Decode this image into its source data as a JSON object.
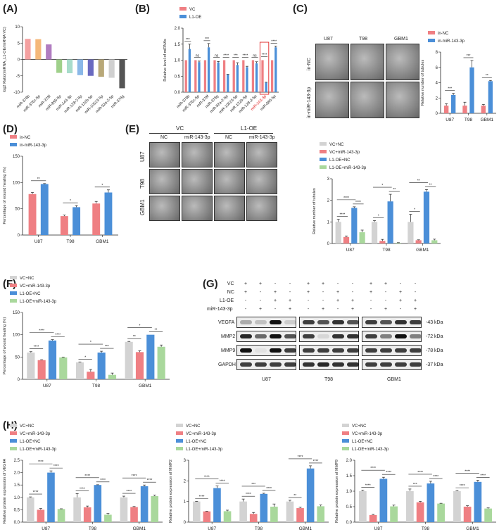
{
  "panels": {
    "A": "(A)",
    "B": "(B)",
    "C": "(C)",
    "D": "(D)",
    "E": "(E)",
    "F": "(F)",
    "G": "(G)",
    "H": "(H)"
  },
  "colors": {
    "grey": "#d3d3d3",
    "red": "#ef7f83",
    "blue": "#4b8fd8",
    "green": "#a9d89c"
  },
  "panel_c_images": {
    "columns": [
      "U87",
      "T98",
      "GBM1"
    ],
    "rows": [
      "in-NC",
      "in-miR-143-3p"
    ]
  },
  "panel_e_images": {
    "groups": [
      "VC",
      "L1-OE"
    ],
    "columns": [
      "NC",
      "miR-143-3p",
      "NC",
      "miR-143-3p"
    ],
    "rows": [
      "U87",
      "T98",
      "GBM1"
    ]
  },
  "panel_g": {
    "conditions": [
      {
        "label": "VC",
        "signs": [
          "+",
          "+",
          "-",
          "-",
          "+",
          "+",
          "-",
          "-",
          "+",
          "+",
          "-",
          "-"
        ]
      },
      {
        "label": "NC",
        "signs": [
          "+",
          "-",
          "+",
          "-",
          "+",
          "-",
          "+",
          "-",
          "+",
          "-",
          "+",
          "-"
        ]
      },
      {
        "label": "L1-OE",
        "signs": [
          "-",
          "-",
          "+",
          "+",
          "-",
          "-",
          "+",
          "+",
          "-",
          "-",
          "+",
          "+"
        ]
      },
      {
        "label": "miR-143-3p",
        "signs": [
          "-",
          "+",
          "-",
          "+",
          "-",
          "+",
          "-",
          "+",
          "-",
          "+",
          "-",
          "+"
        ]
      }
    ],
    "proteins": [
      {
        "name": "VEGFA",
        "kda": "-43 kDa"
      },
      {
        "name": "MMP2",
        "kda": "-72 kDa"
      },
      {
        "name": "MMP9",
        "kda": "-78 kDa"
      },
      {
        "name": "GAPDH",
        "kda": "-37 kDa"
      }
    ],
    "cells": [
      "U87",
      "T98",
      "GBM1"
    ]
  },
  "chart_data": [
    {
      "id": "A",
      "type": "bar",
      "ylabel": "log2 Ratio(miRNA_L1-OE/miRNA VC)",
      "ylim": [
        -10,
        10
      ],
      "yticks": [
        -10,
        -5,
        0,
        5,
        10
      ],
      "rotate_labels": true,
      "categories": [
        "miR-378b",
        "miR-376c-5p",
        "miR-378f",
        "miR-885-5p",
        "miR-143-3p",
        "miR-128-2-5p",
        "miR-122b-5p",
        "miR-10523-5p",
        "miR-92a-2-5p",
        "miR-378g"
      ],
      "values": [
        6.3,
        6.2,
        4.6,
        -4.1,
        -4.2,
        -4.8,
        -5.0,
        -5.3,
        -5.6,
        -8.8
      ],
      "bar_colors": [
        "#f4a0a0",
        "#f5b87a",
        "#b07cc0",
        "#9fd08a",
        "#a8dccb",
        "#8ab8e8",
        "#6a6ac0",
        "#b8a878",
        "#d0d0d0",
        "#555555"
      ]
    },
    {
      "id": "B",
      "type": "bar",
      "ylabel": "Relative level of miRNAs",
      "ylim": [
        0,
        2
      ],
      "yticks": [
        "0.0",
        "0.5",
        "1.0",
        "1.5",
        "2.0"
      ],
      "rotate_labels": true,
      "highlight": "miR-143-3p",
      "categories": [
        "miR-378b",
        "miR-376c-5p",
        "miR-378f",
        "miR-378g",
        "miR-92a-2-5p",
        "miR-10523-5p",
        "miR-122b-5p",
        "miR-128-2-5p",
        "miR-143-3p",
        "miR-885-5p"
      ],
      "series": [
        {
          "name": "VC",
          "color": "#ef7f83",
          "values": [
            1,
            1,
            1,
            1,
            1,
            1,
            1,
            1,
            1,
            1
          ],
          "errors": [
            0,
            0,
            0,
            0,
            0,
            0,
            0,
            0,
            0,
            0
          ]
        },
        {
          "name": "L1-OE",
          "color": "#4b8fd8",
          "values": [
            1.35,
            0.94,
            1.4,
            0.93,
            0.55,
            0.85,
            0.78,
            0.9,
            0.3,
            1.4
          ],
          "errors": [
            0.15,
            0.03,
            0.12,
            0.03,
            0.01,
            0.07,
            0.03,
            0.05,
            0.01,
            0.04
          ]
        }
      ],
      "sig": [
        [
          "***"
        ],
        [
          "ns"
        ],
        [
          "***"
        ],
        [
          "ns"
        ],
        [
          "****"
        ],
        [
          "***"
        ],
        [
          "****"
        ],
        [
          "ns"
        ],
        [
          "****"
        ],
        [
          "****"
        ]
      ]
    },
    {
      "id": "C",
      "type": "bar",
      "ylabel": "Relative number of tubules",
      "ylim": [
        0,
        8
      ],
      "yticks": [
        0,
        2,
        4,
        6,
        8
      ],
      "categories": [
        "U87",
        "T98",
        "GBM1"
      ],
      "series": [
        {
          "name": "in-NC",
          "color": "#ef7f83",
          "values": [
            1,
            1,
            1
          ],
          "errors": [
            0.25,
            0.45,
            0.15
          ]
        },
        {
          "name": "in-miR-143-3p",
          "color": "#4b8fd8",
          "values": [
            2.4,
            6.0,
            4.2
          ],
          "errors": [
            0.2,
            0.9,
            0.1
          ]
        }
      ],
      "sig": [
        [
          "***"
        ],
        [
          "***"
        ],
        [
          "**"
        ]
      ]
    },
    {
      "id": "D",
      "type": "bar",
      "ylabel": "Percentage of wound healing (%)",
      "ylim": [
        0,
        150
      ],
      "yticks": [
        0,
        50,
        100,
        150
      ],
      "categories": [
        "U87",
        "T98",
        "GBM1"
      ],
      "series": [
        {
          "name": "in-NC",
          "color": "#ef7f83",
          "values": [
            78,
            36,
            60
          ],
          "errors": [
            3,
            2,
            4
          ]
        },
        {
          "name": "in-miR-143-3p",
          "color": "#4b8fd8",
          "values": [
            97,
            53,
            81
          ],
          "errors": [
            1,
            3,
            5
          ]
        }
      ],
      "sig": [
        [
          "**"
        ],
        [
          "*"
        ],
        [
          "*"
        ]
      ]
    },
    {
      "id": "E",
      "type": "bar",
      "ylabel": "Relative number of tubules",
      "ylim": [
        0,
        3
      ],
      "yticks": [
        0,
        1,
        2,
        3
      ],
      "categories": [
        "U87",
        "T98",
        "GBM1"
      ],
      "series": [
        {
          "name": "VC+NC",
          "color": "#d3d3d3",
          "values": [
            1.0,
            1.0,
            1.0
          ],
          "errors": [
            0.12,
            0.06,
            0.35
          ]
        },
        {
          "name": "VC+miR-143-3p",
          "color": "#ef7f83",
          "values": [
            0.3,
            0.12,
            0.15
          ],
          "errors": [
            0.05,
            0.07,
            0.02
          ]
        },
        {
          "name": "L1-OE+NC",
          "color": "#4b8fd8",
          "values": [
            1.65,
            1.95,
            2.4
          ],
          "errors": [
            0.05,
            0.33,
            0.1
          ]
        },
        {
          "name": "L1-OE+miR-143-3p",
          "color": "#a9d89c",
          "values": [
            0.52,
            0.03,
            0.15
          ],
          "errors": [
            0.1,
            0.01,
            0.05
          ]
        }
      ],
      "sig": [
        [
          "****",
          "****",
          "****"
        ],
        [
          "*",
          "*",
          "**"
        ],
        [
          "*",
          "**",
          "**"
        ]
      ]
    },
    {
      "id": "F",
      "type": "bar",
      "ylabel": "Percentage of wound healing (%)",
      "ylim": [
        0,
        150
      ],
      "yticks": [
        0,
        50,
        100,
        150
      ],
      "categories": [
        "U87",
        "T98",
        "GBM1"
      ],
      "series": [
        {
          "name": "VC+NC",
          "color": "#d3d3d3",
          "values": [
            60,
            38,
            84
          ],
          "errors": [
            2,
            1,
            1
          ]
        },
        {
          "name": "VC+miR-143-3p",
          "color": "#ef7f83",
          "values": [
            43,
            17,
            61
          ],
          "errors": [
            1,
            5,
            3
          ]
        },
        {
          "name": "L1-OE+NC",
          "color": "#4b8fd8",
          "values": [
            87,
            60,
            100
          ],
          "errors": [
            2,
            3,
            0
          ]
        },
        {
          "name": "L1-OE+miR-143-3p",
          "color": "#a9d89c",
          "values": [
            49,
            10,
            73
          ],
          "errors": [
            1,
            4,
            4
          ]
        }
      ],
      "sig": [
        [
          "****",
          "****",
          "****"
        ],
        [
          "*",
          "*",
          "***"
        ],
        [
          "**",
          "*",
          "**"
        ]
      ]
    },
    {
      "id": "H1",
      "type": "bar",
      "ylabel": "Relative protein expression of VEGFA",
      "ylim": [
        0,
        2.5
      ],
      "yticks": [
        "0.0",
        "0.5",
        "1.0",
        "1.5",
        "2.0",
        "2.5"
      ],
      "categories": [
        "U87",
        "T98",
        "GBM1"
      ],
      "series": [
        {
          "name": "VC+NC",
          "color": "#d3d3d3",
          "values": [
            1.0,
            1.0,
            1.0
          ],
          "errors": [
            0.02,
            0.15,
            0.05
          ]
        },
        {
          "name": "VC+miR-143-3p",
          "color": "#ef7f83",
          "values": [
            0.5,
            0.6,
            0.61
          ],
          "errors": [
            0.05,
            0.05,
            0.02
          ]
        },
        {
          "name": "L1-OE+NC",
          "color": "#4b8fd8",
          "values": [
            2.0,
            1.5,
            1.45
          ],
          "errors": [
            0.07,
            0.01,
            0.05
          ]
        },
        {
          "name": "L1-OE+miR-143-3p",
          "color": "#a9d89c",
          "values": [
            0.53,
            0.3,
            1.05
          ],
          "errors": [
            0.01,
            0.05,
            0.04
          ]
        }
      ],
      "sig": [
        [
          "****",
          "****",
          "****"
        ],
        [
          "****",
          "****",
          "****"
        ],
        [
          "****",
          "****",
          "****"
        ]
      ]
    },
    {
      "id": "H2",
      "type": "bar",
      "ylabel": "Relative protein expression of MMP2",
      "ylim": [
        0,
        3
      ],
      "yticks": [
        0,
        1,
        2,
        3
      ],
      "categories": [
        "U87",
        "T98",
        "GBM1"
      ],
      "series": [
        {
          "name": "VC+NC",
          "color": "#d3d3d3",
          "values": [
            1.0,
            1.0,
            1.0
          ],
          "errors": [
            0.01,
            0.12,
            0.06
          ]
        },
        {
          "name": "VC+miR-143-3p",
          "color": "#ef7f83",
          "values": [
            0.52,
            0.4,
            0.68
          ],
          "errors": [
            0.01,
            0.07,
            0.04
          ]
        },
        {
          "name": "L1-OE+NC",
          "color": "#4b8fd8",
          "values": [
            1.65,
            1.37,
            2.6
          ],
          "errors": [
            0.1,
            0.03,
            0.13
          ]
        },
        {
          "name": "L1-OE+miR-143-3p",
          "color": "#a9d89c",
          "values": [
            0.53,
            0.75,
            0.77
          ],
          "errors": [
            0.05,
            0.13,
            0.06
          ]
        }
      ],
      "sig": [
        [
          "****",
          "****",
          "****"
        ],
        [
          "****",
          "***",
          "****"
        ],
        [
          "**",
          "****",
          "****"
        ]
      ]
    },
    {
      "id": "H3",
      "type": "bar",
      "ylabel": "Relative protein expression of MMP9",
      "ylim": [
        0,
        2
      ],
      "yticks": [
        "0.0",
        "0.5",
        "1.0",
        "1.5",
        "2.0"
      ],
      "categories": [
        "U87",
        "T98",
        "GBM1"
      ],
      "series": [
        {
          "name": "VC+NC",
          "color": "#d3d3d3",
          "values": [
            1.0,
            1.0,
            1.0
          ],
          "errors": [
            0.03,
            0.07,
            0.02
          ]
        },
        {
          "name": "VC+miR-143-3p",
          "color": "#ef7f83",
          "values": [
            0.23,
            0.64,
            0.5
          ],
          "errors": [
            0.02,
            0.03,
            0.03
          ]
        },
        {
          "name": "L1-OE+NC",
          "color": "#4b8fd8",
          "values": [
            1.4,
            1.25,
            1.3
          ],
          "errors": [
            0.05,
            0.07,
            0.05
          ]
        },
        {
          "name": "L1-OE+miR-143-3p",
          "color": "#a9d89c",
          "values": [
            0.51,
            0.6,
            0.44
          ],
          "errors": [
            0.04,
            0.01,
            0.02
          ]
        }
      ],
      "sig": [
        [
          "****",
          "****",
          "****"
        ],
        [
          "***",
          "****",
          "****"
        ],
        [
          "****",
          "****",
          "****"
        ]
      ]
    }
  ]
}
